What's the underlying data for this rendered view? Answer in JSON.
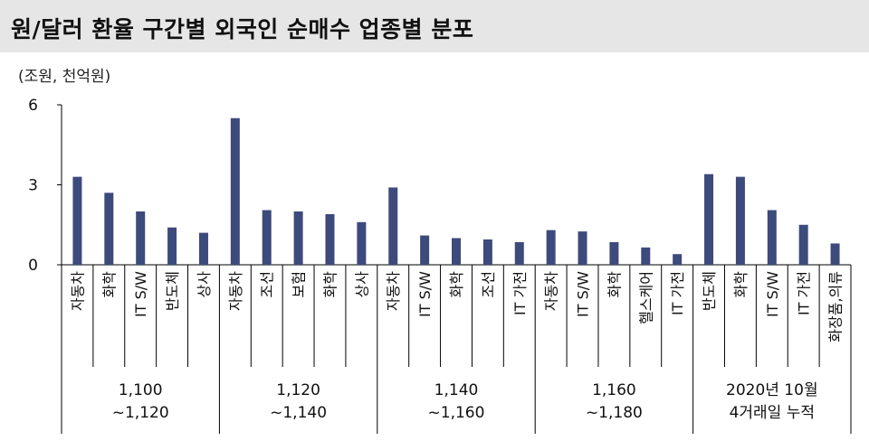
{
  "header": {
    "title": "원/달러 환율 구간별 외국인 순매수 업종별 분포"
  },
  "chart_data": {
    "type": "bar",
    "unit_label": "(조원, 천억원)",
    "ylim": [
      0,
      6
    ],
    "yticks": [
      0,
      3,
      6
    ],
    "grid": false,
    "color": "#3d4a7c",
    "groups": [
      {
        "label": [
          "1,100",
          "~1,120"
        ],
        "items": [
          {
            "category": "자동차",
            "value": 3.3
          },
          {
            "category": "화학",
            "value": 2.7
          },
          {
            "category": "IT S/W",
            "value": 2.0
          },
          {
            "category": "반도체",
            "value": 1.4
          },
          {
            "category": "상사",
            "value": 1.2
          }
        ]
      },
      {
        "label": [
          "1,120",
          "~1,140"
        ],
        "items": [
          {
            "category": "자동차",
            "value": 5.5
          },
          {
            "category": "조선",
            "value": 2.05
          },
          {
            "category": "보험",
            "value": 2.0
          },
          {
            "category": "화학",
            "value": 1.9
          },
          {
            "category": "상사",
            "value": 1.6
          }
        ]
      },
      {
        "label": [
          "1,140",
          "~1,160"
        ],
        "items": [
          {
            "category": "자동차",
            "value": 2.9
          },
          {
            "category": "IT S/W",
            "value": 1.1
          },
          {
            "category": "화학",
            "value": 1.0
          },
          {
            "category": "조선",
            "value": 0.95
          },
          {
            "category": "IT 가전",
            "value": 0.85
          }
        ]
      },
      {
        "label": [
          "1,160",
          "~1,180"
        ],
        "items": [
          {
            "category": "자동차",
            "value": 1.3
          },
          {
            "category": "IT S/W",
            "value": 1.25
          },
          {
            "category": "화학",
            "value": 0.85
          },
          {
            "category": "헬스케어",
            "value": 0.65
          },
          {
            "category": "IT 가전",
            "value": 0.4
          }
        ]
      },
      {
        "label": [
          "2020년 10월",
          "4거래일 누적"
        ],
        "items": [
          {
            "category": "반도체",
            "value": 3.4
          },
          {
            "category": "화학",
            "value": 3.3
          },
          {
            "category": "IT S/W",
            "value": 2.05
          },
          {
            "category": "IT 가전",
            "value": 1.5
          },
          {
            "category": "화장품,의류",
            "value": 0.8
          }
        ]
      }
    ]
  }
}
